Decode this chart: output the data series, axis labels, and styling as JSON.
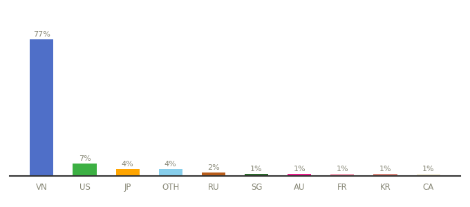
{
  "categories": [
    "VN",
    "US",
    "JP",
    "OTH",
    "RU",
    "SG",
    "AU",
    "FR",
    "KR",
    "CA"
  ],
  "values": [
    77,
    7,
    4,
    4,
    2,
    1,
    1,
    1,
    1,
    1
  ],
  "labels": [
    "77%",
    "7%",
    "4%",
    "4%",
    "2%",
    "1%",
    "1%",
    "1%",
    "1%",
    "1%"
  ],
  "bar_colors": [
    "#4F6FC8",
    "#3CB043",
    "#FFA500",
    "#87CEEB",
    "#B85C1A",
    "#2D6A2D",
    "#E91E8C",
    "#F4A0B5",
    "#D9857A",
    "#F5F0DC"
  ],
  "ylim": [
    0,
    85
  ],
  "background_color": "#ffffff",
  "label_fontsize": 8.0,
  "xlabel_fontsize": 8.5,
  "bar_width": 0.55
}
